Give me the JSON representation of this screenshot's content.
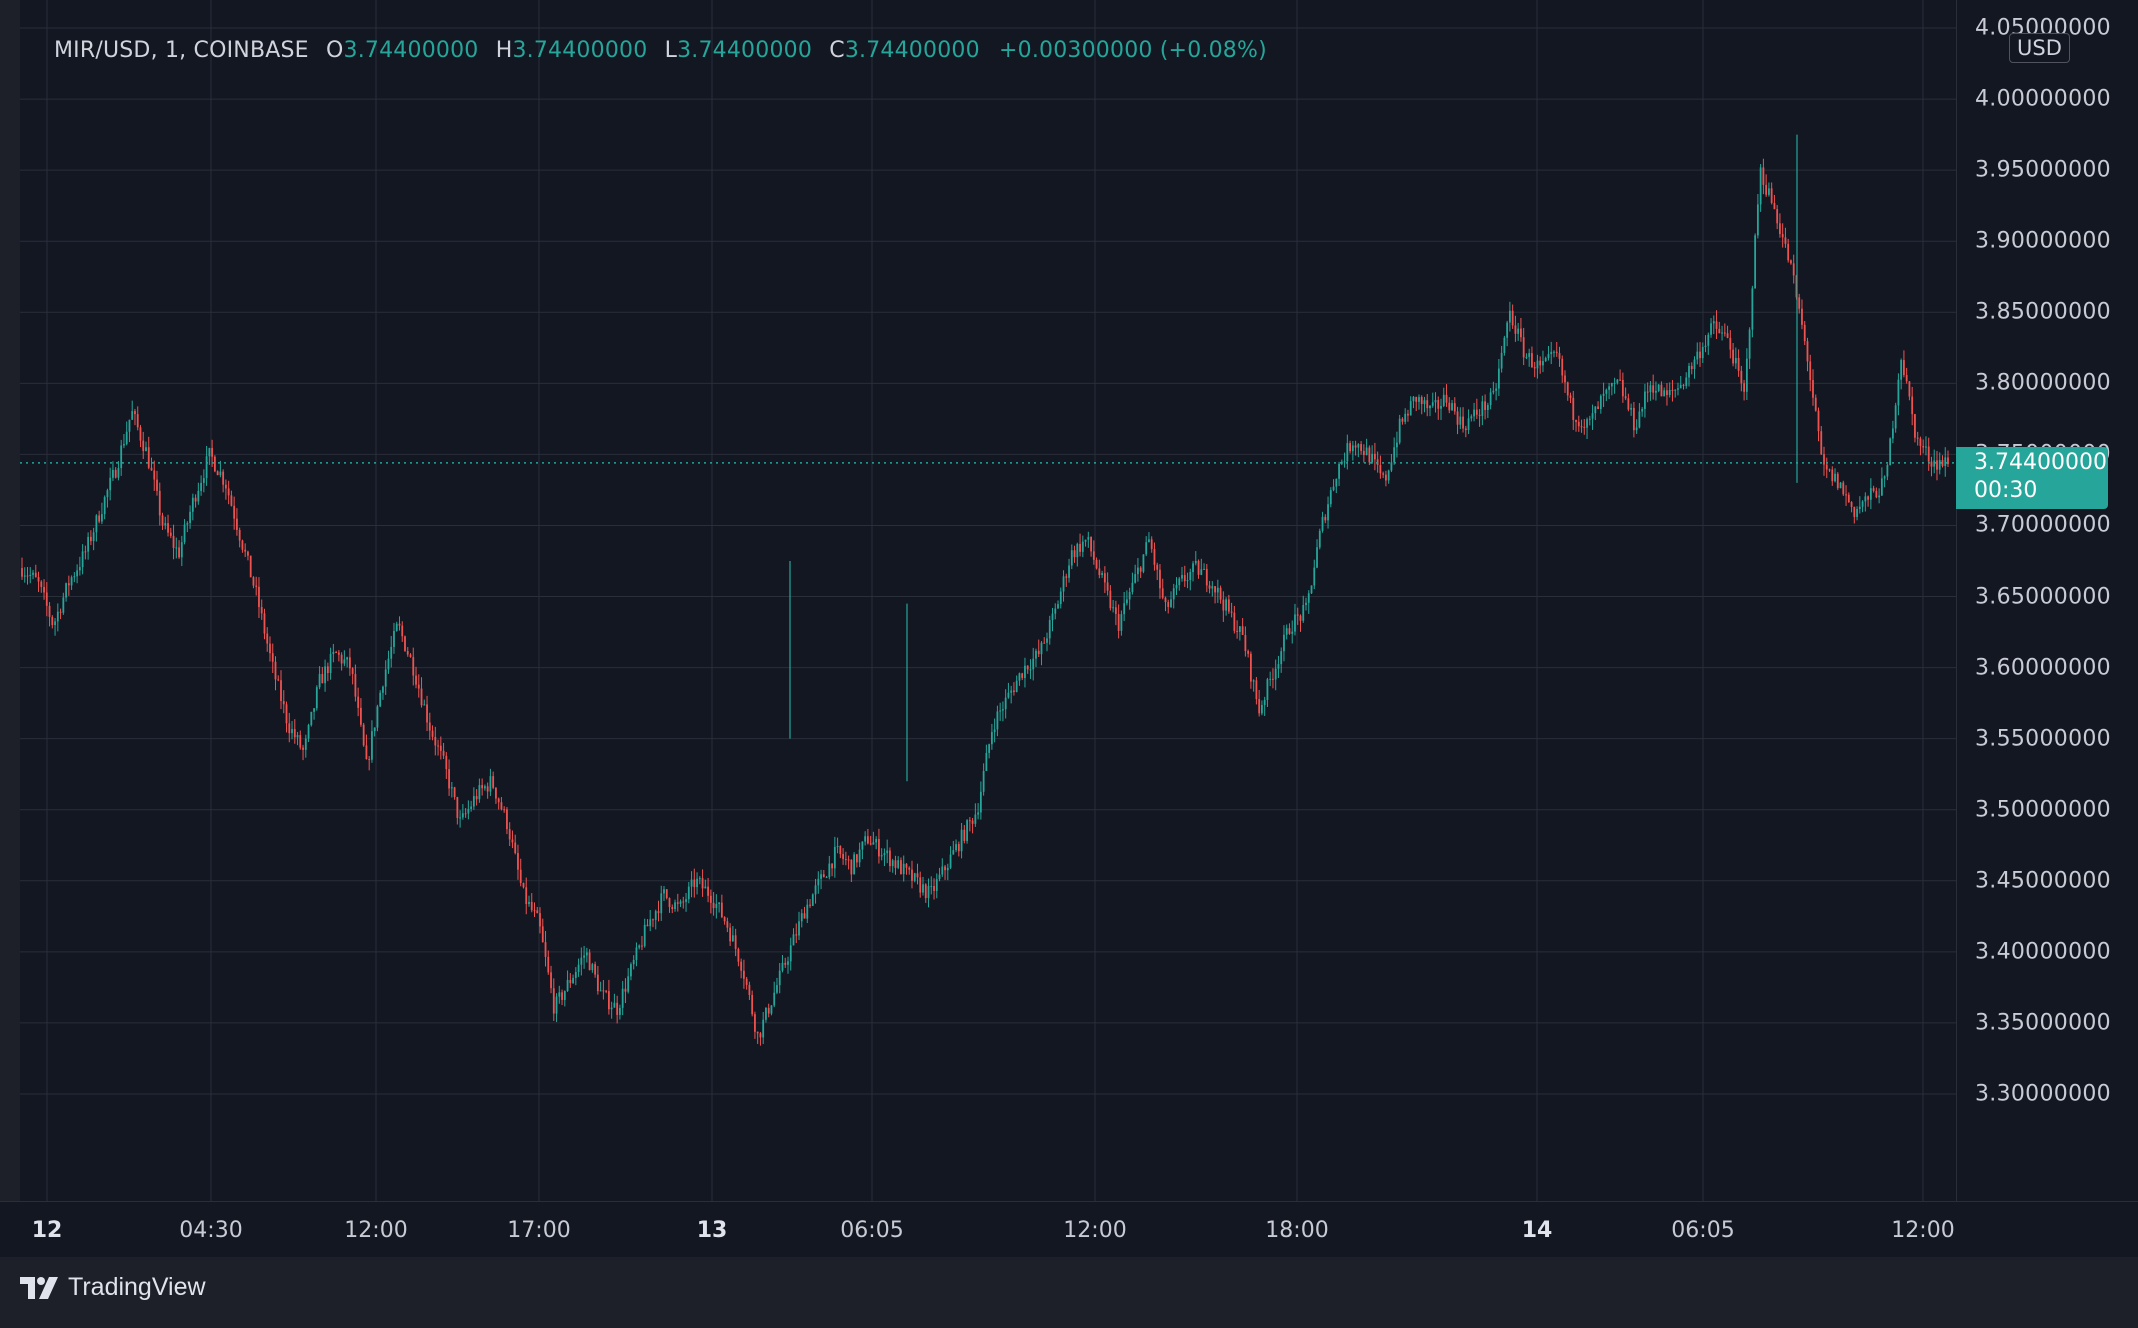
{
  "legend": {
    "symbol": "MIR/USD, 1, COINBASE",
    "open_label": "O",
    "open": "3.74400000",
    "high_label": "H",
    "high": "3.74400000",
    "low_label": "L",
    "low": "3.74400000",
    "close_label": "C",
    "close": "3.74400000",
    "change": "+0.00300000 (+0.08%)"
  },
  "currency_button": "USD",
  "last_price": {
    "value": "3.74400000",
    "countdown": "00:30"
  },
  "footer": {
    "brand": "TradingView"
  },
  "colors": {
    "up": "#26a69a",
    "down": "#ef5350",
    "background": "#131722",
    "grid": "#2a2e39"
  },
  "chart_data": {
    "type": "line",
    "y_ticks": [
      "4.05000000",
      "4.00000000",
      "3.95000000",
      "3.90000000",
      "3.85000000",
      "3.80000000",
      "3.75000000",
      "3.70000000",
      "3.65000000",
      "3.60000000",
      "3.55000000",
      "3.50000000",
      "3.45000000",
      "3.40000000",
      "3.35000000",
      "3.30000000"
    ],
    "x_ticks": [
      {
        "label": "12",
        "bold": true
      },
      {
        "label": "04:30",
        "bold": false
      },
      {
        "label": "12:00",
        "bold": false
      },
      {
        "label": "17:00",
        "bold": false
      },
      {
        "label": "13",
        "bold": true
      },
      {
        "label": "06:05",
        "bold": false
      },
      {
        "label": "12:00",
        "bold": false
      },
      {
        "label": "18:00",
        "bold": false
      },
      {
        "label": "14",
        "bold": true
      },
      {
        "label": "06:05",
        "bold": false
      },
      {
        "label": "12:00",
        "bold": false
      }
    ],
    "ylim": [
      3.262,
      4.05
    ],
    "last_price": 3.744,
    "grid": true,
    "series": [
      {
        "values": [
          3.67,
          3.66,
          3.63,
          3.66,
          3.68,
          3.71,
          3.74,
          3.78,
          3.75,
          3.7,
          3.68,
          3.72,
          3.75,
          3.73,
          3.69,
          3.65,
          3.6,
          3.56,
          3.54,
          3.59,
          3.61,
          3.6,
          3.53,
          3.59,
          3.63,
          3.6,
          3.56,
          3.53,
          3.49,
          3.51,
          3.52,
          3.49,
          3.44,
          3.42,
          3.36,
          3.38,
          3.4,
          3.37,
          3.36,
          3.39,
          3.42,
          3.44,
          3.43,
          3.45,
          3.44,
          3.42,
          3.39,
          3.34,
          3.37,
          3.4,
          3.43,
          3.45,
          3.47,
          3.46,
          3.48,
          3.47,
          3.46,
          3.45,
          3.44,
          3.46,
          3.48,
          3.5,
          3.56,
          3.58,
          3.6,
          3.61,
          3.64,
          3.68,
          3.69,
          3.66,
          3.63,
          3.66,
          3.69,
          3.64,
          3.66,
          3.67,
          3.66,
          3.64,
          3.62,
          3.57,
          3.6,
          3.63,
          3.64,
          3.7,
          3.74,
          3.76,
          3.75,
          3.73,
          3.77,
          3.79,
          3.78,
          3.79,
          3.77,
          3.78,
          3.79,
          3.85,
          3.82,
          3.81,
          3.82,
          3.78,
          3.77,
          3.79,
          3.8,
          3.77,
          3.8,
          3.79,
          3.8,
          3.82,
          3.84,
          3.83,
          3.79,
          3.95,
          3.92,
          3.88,
          3.82,
          3.74,
          3.73,
          3.71,
          3.72,
          3.73,
          3.82,
          3.76,
          3.745,
          3.744
        ]
      }
    ]
  }
}
